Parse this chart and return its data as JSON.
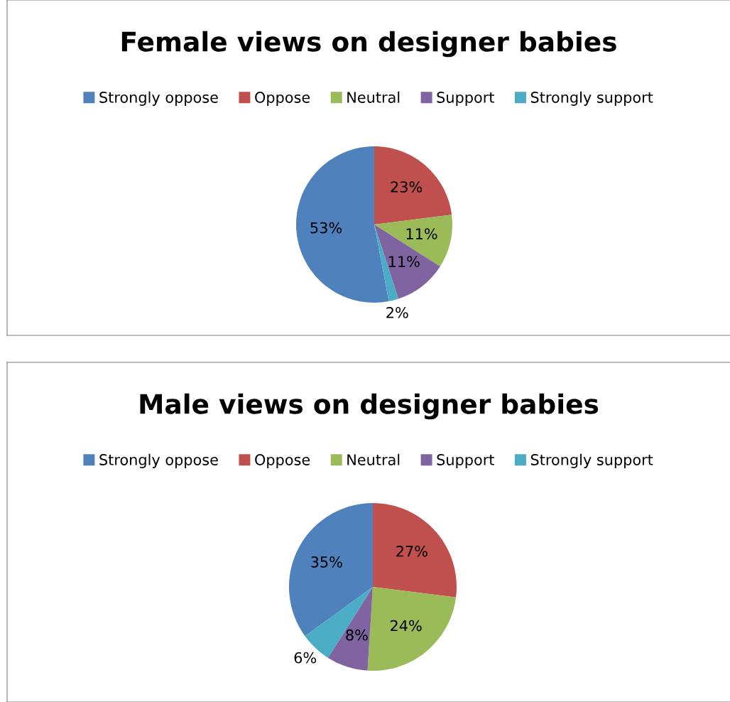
{
  "chart_data": [
    {
      "type": "pie",
      "title": "Female views on designer babies",
      "categories": [
        "Strongly oppose",
        "Oppose",
        "Neutral",
        "Support",
        "Strongly support"
      ],
      "values": [
        53,
        23,
        11,
        11,
        2
      ],
      "value_labels": [
        "53%",
        "23%",
        "11%",
        "11%",
        "2%"
      ],
      "colors": [
        "#4f81bd",
        "#c0504d",
        "#9bbb59",
        "#8064a2",
        "#4bacc6"
      ],
      "legend": "top"
    },
    {
      "type": "pie",
      "title": "Male views on designer babies",
      "categories": [
        "Strongly oppose",
        "Oppose",
        "Neutral",
        "Support",
        "Strongly support"
      ],
      "values": [
        35,
        27,
        24,
        8,
        6
      ],
      "value_labels": [
        "35%",
        "27%",
        "24%",
        "8%",
        "6%"
      ],
      "colors": [
        "#4f81bd",
        "#c0504d",
        "#9bbb59",
        "#8064a2",
        "#4bacc6"
      ],
      "legend": "top"
    }
  ]
}
